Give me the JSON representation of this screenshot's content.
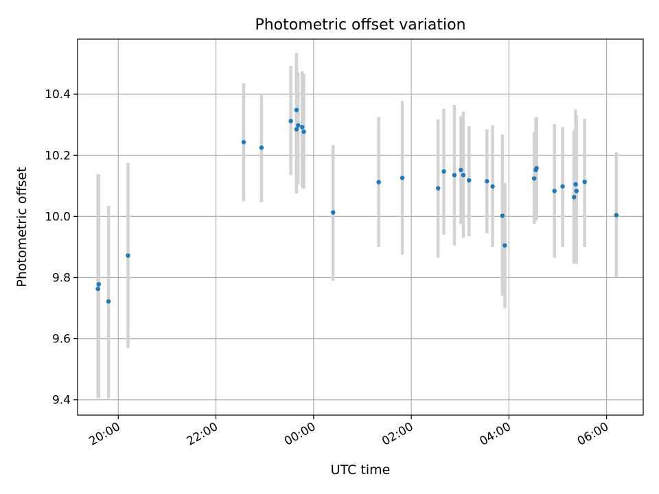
{
  "chart_data": {
    "type": "scatter",
    "title": "Photometric offset variation",
    "xlabel": "UTC time",
    "ylabel": "Photometric offset",
    "x_unit": "UTC time (hh:mm), after 24:00 continues to next day",
    "xlim": [
      "19:10",
      "30:45"
    ],
    "ylim": [
      9.35,
      10.58
    ],
    "x_tick_labels": [
      "20:00",
      "22:00",
      "00:00",
      "02:00",
      "04:00",
      "06:00"
    ],
    "y_tick_labels": [
      "9.4",
      "9.6",
      "9.8",
      "10.0",
      "10.2",
      "10.4"
    ],
    "grid": true,
    "marker_color": "#1f77b4",
    "errorbar_color": "#d3d3d3",
    "series": [
      {
        "points": [
          {
            "t": "19:35",
            "y": 9.763,
            "lo": 9.405,
            "hi": 10.138
          },
          {
            "t": "19:36",
            "y": 9.778,
            "lo": 9.405,
            "hi": 10.138
          },
          {
            "t": "19:48",
            "y": 9.722,
            "lo": 9.405,
            "hi": 10.035
          },
          {
            "t": "20:12",
            "y": 9.872,
            "lo": 9.57,
            "hi": 10.175
          },
          {
            "t": "22:34",
            "y": 10.243,
            "lo": 10.05,
            "hi": 10.435
          },
          {
            "t": "22:56",
            "y": 10.225,
            "lo": 10.047,
            "hi": 10.402
          },
          {
            "t": "23:32",
            "y": 10.312,
            "lo": 10.135,
            "hi": 10.492
          },
          {
            "t": "23:39",
            "y": 10.285,
            "lo": 10.075,
            "hi": 10.535
          },
          {
            "t": "23:39",
            "y": 10.348,
            "lo": 10.14,
            "hi": 10.49
          },
          {
            "t": "23:41",
            "y": 10.298,
            "lo": 10.105,
            "hi": 10.47
          },
          {
            "t": "23:46",
            "y": 10.292,
            "lo": 10.095,
            "hi": 10.475
          },
          {
            "t": "23:48",
            "y": 10.277,
            "lo": 10.09,
            "hi": 10.465
          },
          {
            "t": "00:24",
            "y": 10.013,
            "lo": 9.79,
            "hi": 10.233
          },
          {
            "t": "01:20",
            "y": 10.112,
            "lo": 9.9,
            "hi": 10.325
          },
          {
            "t": "01:49",
            "y": 10.126,
            "lo": 9.875,
            "hi": 10.378
          },
          {
            "t": "02:33",
            "y": 10.092,
            "lo": 9.865,
            "hi": 10.318
          },
          {
            "t": "02:40",
            "y": 10.147,
            "lo": 9.94,
            "hi": 10.352
          },
          {
            "t": "02:53",
            "y": 10.135,
            "lo": 9.905,
            "hi": 10.365
          },
          {
            "t": "03:01",
            "y": 10.152,
            "lo": 9.975,
            "hi": 10.328
          },
          {
            "t": "03:04",
            "y": 10.135,
            "lo": 9.93,
            "hi": 10.342
          },
          {
            "t": "03:11",
            "y": 10.118,
            "lo": 9.935,
            "hi": 10.295
          },
          {
            "t": "03:33",
            "y": 10.115,
            "lo": 9.945,
            "hi": 10.285
          },
          {
            "t": "03:40",
            "y": 10.098,
            "lo": 9.9,
            "hi": 10.298
          },
          {
            "t": "03:52",
            "y": 10.002,
            "lo": 9.74,
            "hi": 10.268
          },
          {
            "t": "03:55",
            "y": 9.905,
            "lo": 9.7,
            "hi": 10.11
          },
          {
            "t": "04:31",
            "y": 10.124,
            "lo": 9.975,
            "hi": 10.275
          },
          {
            "t": "04:33",
            "y": 10.152,
            "lo": 9.985,
            "hi": 10.322
          },
          {
            "t": "04:34",
            "y": 10.158,
            "lo": 9.99,
            "hi": 10.325
          },
          {
            "t": "04:56",
            "y": 10.083,
            "lo": 9.865,
            "hi": 10.302
          },
          {
            "t": "05:06",
            "y": 10.098,
            "lo": 9.9,
            "hi": 10.292
          },
          {
            "t": "05:20",
            "y": 10.063,
            "lo": 9.845,
            "hi": 10.282
          },
          {
            "t": "05:22",
            "y": 10.105,
            "lo": 9.845,
            "hi": 10.35
          },
          {
            "t": "05:23",
            "y": 10.083,
            "lo": 9.845,
            "hi": 10.33
          },
          {
            "t": "05:33",
            "y": 10.113,
            "lo": 9.9,
            "hi": 10.32
          },
          {
            "t": "06:12",
            "y": 10.004,
            "lo": 9.8,
            "hi": 10.21
          }
        ]
      }
    ]
  }
}
